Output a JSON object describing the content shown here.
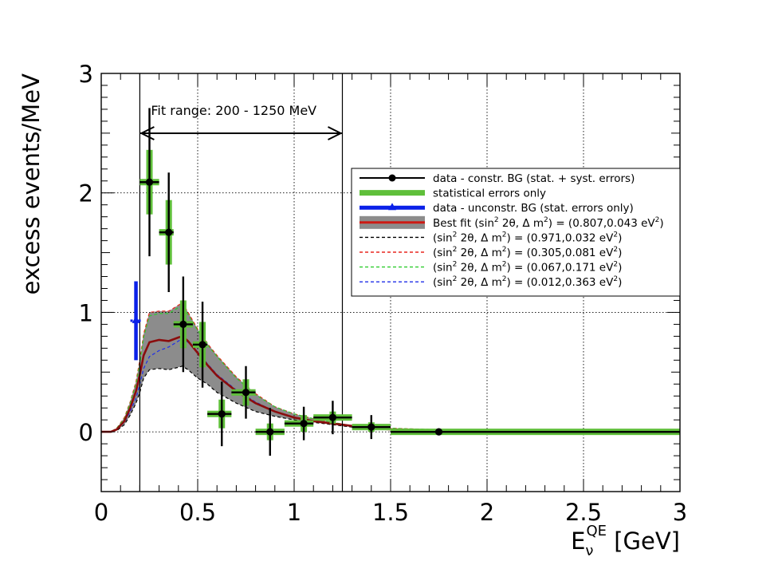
{
  "chart_data": {
    "type": "scatter",
    "xlabel": "E",
    "xlabel_sub": "ν",
    "xlabel_sup": "QE",
    "xlabel_unit": " [GeV]",
    "ylabel": "excess events/MeV",
    "xlim": [
      0,
      3
    ],
    "ylim": [
      -0.5,
      3
    ],
    "x_ticks": [
      {
        "value": 0,
        "label": "0"
      },
      {
        "value": 0.5,
        "label": "0.5"
      },
      {
        "value": 1,
        "label": "1"
      },
      {
        "value": 1.5,
        "label": "1.5"
      },
      {
        "value": 2,
        "label": "2"
      },
      {
        "value": 2.5,
        "label": "2.5"
      },
      {
        "value": 3,
        "label": "3"
      }
    ],
    "y_ticks": [
      {
        "value": 0,
        "label": "0"
      },
      {
        "value": 1,
        "label": "1"
      },
      {
        "value": 2,
        "label": "2"
      },
      {
        "value": 3,
        "label": "3"
      }
    ],
    "grid": true,
    "fit_range_label": "Fit range: 200 - 1250 MeV",
    "fit_range": [
      0.2,
      1.25
    ],
    "legend": [
      {
        "label": "data - constr. BG (stat. + syst. errors)",
        "color": "#000000",
        "style": "marker-line"
      },
      {
        "label": "statistical errors only",
        "color": "#5fbf3a",
        "style": "thick"
      },
      {
        "label": "data - unconstr. BG (stat. errors only)",
        "color": "#0a20e8",
        "style": "thick-marker"
      },
      {
        "label": "Best fit (sin2 2θ, Δ m2) = (0.807,0.043 eV2)",
        "color": "#cc1a14",
        "style": "band",
        "pre": "Best fit (sin",
        "s1": "2",
        "mid": " 2θ, Δ m",
        "s2": "2",
        "post": ") = (0.807,0.043 eV",
        "s3": "2",
        "end": ")"
      },
      {
        "label": "(sin2 2θ, Δ m2) = (0.971,0.032 eV2)",
        "color": "#000000",
        "style": "dashed",
        "pre": "(sin",
        "s1": "2",
        "mid": " 2θ, Δ m",
        "s2": "2",
        "post": ") = (0.971,0.032 eV",
        "s3": "2",
        "end": ")"
      },
      {
        "label": "(sin2 2θ, Δ m2) = (0.305,0.081 eV2)",
        "color": "#e8261e",
        "style": "dashed",
        "pre": "(sin",
        "s1": "2",
        "mid": " 2θ, Δ m",
        "s2": "2",
        "post": ") = (0.305,0.081 eV",
        "s3": "2",
        "end": ")"
      },
      {
        "label": "(sin2 2θ, Δ m2) = (0.067,0.171 eV2)",
        "color": "#2ecc2e",
        "style": "dashed",
        "pre": "(sin",
        "s1": "2",
        "mid": " 2θ, Δ m",
        "s2": "2",
        "post": ") = (0.067,0.171 eV",
        "s3": "2",
        "end": ")"
      },
      {
        "label": "(sin2 2θ, Δ m2) = (0.012,0.363 eV2)",
        "color": "#1f2ee8",
        "style": "dashed",
        "pre": "(sin",
        "s1": "2",
        "mid": " 2θ, Δ m",
        "s2": "2",
        "post": ") = (0.012,0.363 eV",
        "s3": "2",
        "end": ")"
      }
    ],
    "series": [
      {
        "name": "data - constr. BG (stat. + syst. errors)",
        "points": [
          {
            "x": 0.25,
            "y": 2.09,
            "xlo": 0.2,
            "xhi": 0.3,
            "err": 0.62,
            "stat": 0.27
          },
          {
            "x": 0.35,
            "y": 1.67,
            "xlo": 0.3,
            "xhi": 0.375,
            "err": 0.5,
            "stat": 0.27
          },
          {
            "x": 0.425,
            "y": 0.9,
            "xlo": 0.375,
            "xhi": 0.475,
            "err": 0.4,
            "stat": 0.2
          },
          {
            "x": 0.525,
            "y": 0.73,
            "xlo": 0.475,
            "xhi": 0.55,
            "err": 0.36,
            "stat": 0.19
          },
          {
            "x": 0.625,
            "y": 0.15,
            "xlo": 0.55,
            "xhi": 0.675,
            "err": 0.27,
            "stat": 0.12
          },
          {
            "x": 0.75,
            "y": 0.33,
            "xlo": 0.675,
            "xhi": 0.8,
            "err": 0.22,
            "stat": 0.11
          },
          {
            "x": 0.875,
            "y": 0.0,
            "xlo": 0.8,
            "xhi": 0.95,
            "err": 0.2,
            "stat": 0.07
          },
          {
            "x": 1.05,
            "y": 0.07,
            "xlo": 0.95,
            "xhi": 1.1,
            "err": 0.14,
            "stat": 0.07
          },
          {
            "x": 1.2,
            "y": 0.12,
            "xlo": 1.1,
            "xhi": 1.3,
            "err": 0.14,
            "stat": 0.05
          },
          {
            "x": 1.4,
            "y": 0.04,
            "xlo": 1.3,
            "xhi": 1.5,
            "err": 0.1,
            "stat": 0.04
          },
          {
            "x": 1.75,
            "y": 0.0,
            "xlo": 1.5,
            "xhi": 3.0,
            "err": 0.02,
            "stat": 0.02
          }
        ]
      },
      {
        "name": "data - unconstr. BG (stat. errors only)",
        "points": [
          {
            "x": 0.18,
            "y": 0.93,
            "err": 0.33
          }
        ]
      },
      {
        "name": "Best fit band",
        "x": [
          0.0,
          0.05,
          0.08,
          0.12,
          0.15,
          0.18,
          0.2,
          0.22,
          0.25,
          0.3,
          0.35,
          0.4,
          0.42,
          0.45,
          0.5,
          0.55,
          0.6,
          0.7,
          0.8,
          0.9,
          1.0,
          1.1,
          1.2,
          1.3,
          1.4,
          1.5,
          1.7,
          2.0,
          2.5,
          3.0
        ],
        "upper": [
          0.0,
          0.0,
          0.03,
          0.12,
          0.25,
          0.42,
          0.6,
          0.82,
          1.0,
          1.01,
          1.01,
          1.06,
          1.08,
          1.0,
          0.86,
          0.74,
          0.64,
          0.46,
          0.32,
          0.21,
          0.15,
          0.11,
          0.08,
          0.05,
          0.04,
          0.03,
          0.02,
          0.01,
          0.0,
          0.0
        ],
        "lower": [
          0.0,
          0.0,
          0.01,
          0.06,
          0.14,
          0.24,
          0.33,
          0.45,
          0.52,
          0.53,
          0.52,
          0.54,
          0.55,
          0.52,
          0.45,
          0.4,
          0.33,
          0.24,
          0.17,
          0.13,
          0.1,
          0.08,
          0.06,
          0.04,
          0.03,
          0.02,
          0.015,
          0.01,
          0.0,
          0.0
        ]
      },
      {
        "name": "Best fit (sin2 2θ, Δ m2) = (0.807,0.043 eV2)",
        "x": [
          0.0,
          0.05,
          0.08,
          0.12,
          0.15,
          0.18,
          0.2,
          0.22,
          0.25,
          0.3,
          0.35,
          0.4,
          0.42,
          0.45,
          0.5,
          0.55,
          0.6,
          0.7,
          0.8,
          0.9,
          1.0,
          1.1,
          1.2,
          1.3,
          1.4,
          1.5,
          1.7,
          2.0,
          2.5,
          3.0
        ],
        "y": [
          0.0,
          0.0,
          0.02,
          0.09,
          0.2,
          0.34,
          0.48,
          0.64,
          0.75,
          0.77,
          0.76,
          0.79,
          0.8,
          0.76,
          0.66,
          0.56,
          0.47,
          0.34,
          0.24,
          0.17,
          0.12,
          0.09,
          0.07,
          0.05,
          0.03,
          0.02,
          0.015,
          0.01,
          0.0,
          0.0
        ]
      },
      {
        "name": "(sin2 2θ, Δ m2) = (0.971,0.032 eV2)",
        "x": [
          0.0,
          0.05,
          0.08,
          0.12,
          0.15,
          0.18,
          0.2,
          0.22,
          0.25,
          0.3,
          0.35,
          0.4,
          0.42,
          0.45,
          0.5,
          0.55,
          0.6,
          0.7,
          0.8,
          0.9,
          1.0,
          1.1,
          1.2,
          1.3,
          1.4,
          1.5,
          1.7,
          2.0,
          2.5,
          3.0
        ],
        "y": [
          0.0,
          0.0,
          0.01,
          0.06,
          0.14,
          0.24,
          0.33,
          0.45,
          0.52,
          0.53,
          0.52,
          0.54,
          0.55,
          0.52,
          0.45,
          0.4,
          0.33,
          0.24,
          0.17,
          0.13,
          0.1,
          0.08,
          0.06,
          0.04,
          0.03,
          0.02,
          0.015,
          0.01,
          0.0,
          0.0
        ]
      },
      {
        "name": "(sin2 2θ, Δ m2) = (0.305,0.081 eV2)",
        "x": [
          0.0,
          0.05,
          0.08,
          0.12,
          0.15,
          0.18,
          0.2,
          0.22,
          0.25,
          0.3,
          0.35,
          0.4,
          0.42,
          0.45,
          0.5,
          0.55,
          0.6,
          0.7,
          0.8,
          0.9,
          1.0,
          1.1,
          1.2,
          1.3,
          1.4,
          1.5,
          1.7,
          2.0,
          2.5,
          3.0
        ],
        "y": [
          0.0,
          0.0,
          0.03,
          0.12,
          0.25,
          0.42,
          0.6,
          0.82,
          1.0,
          1.01,
          1.01,
          1.06,
          1.08,
          1.0,
          0.86,
          0.74,
          0.64,
          0.46,
          0.32,
          0.21,
          0.15,
          0.11,
          0.08,
          0.05,
          0.04,
          0.03,
          0.02,
          0.01,
          0.0,
          0.0
        ]
      },
      {
        "name": "(sin2 2θ, Δ m2) = (0.067,0.171 eV2)",
        "x": [
          0.0,
          0.05,
          0.08,
          0.12,
          0.15,
          0.18,
          0.2,
          0.22,
          0.25,
          0.3,
          0.35,
          0.4,
          0.42,
          0.45,
          0.5,
          0.55,
          0.6,
          0.7,
          0.8,
          0.9,
          1.0,
          1.1,
          1.2,
          1.3,
          1.4,
          1.5,
          1.7,
          2.0,
          2.5,
          3.0
        ],
        "y": [
          0.0,
          0.0,
          0.03,
          0.11,
          0.24,
          0.4,
          0.57,
          0.79,
          0.97,
          0.99,
          0.99,
          1.04,
          1.06,
          0.98,
          0.85,
          0.73,
          0.63,
          0.45,
          0.31,
          0.21,
          0.15,
          0.11,
          0.08,
          0.05,
          0.04,
          0.03,
          0.02,
          0.01,
          0.0,
          0.0
        ]
      },
      {
        "name": "(sin2 2θ, Δ m2) = (0.012,0.363 eV2)",
        "x": [
          0.0,
          0.05,
          0.08,
          0.12,
          0.15,
          0.18,
          0.2,
          0.22,
          0.25,
          0.3,
          0.35,
          0.4,
          0.42,
          0.45,
          0.5,
          0.55,
          0.6,
          0.7,
          0.8,
          0.9,
          1.0,
          1.1,
          1.2,
          1.3,
          1.4,
          1.5,
          1.7,
          2.0,
          2.5,
          3.0
        ],
        "y": [
          0.0,
          0.0,
          0.02,
          0.08,
          0.17,
          0.28,
          0.4,
          0.53,
          0.63,
          0.68,
          0.71,
          0.76,
          0.78,
          0.75,
          0.67,
          0.57,
          0.48,
          0.35,
          0.25,
          0.17,
          0.12,
          0.09,
          0.07,
          0.05,
          0.03,
          0.02,
          0.015,
          0.01,
          0.0,
          0.0
        ]
      }
    ]
  }
}
